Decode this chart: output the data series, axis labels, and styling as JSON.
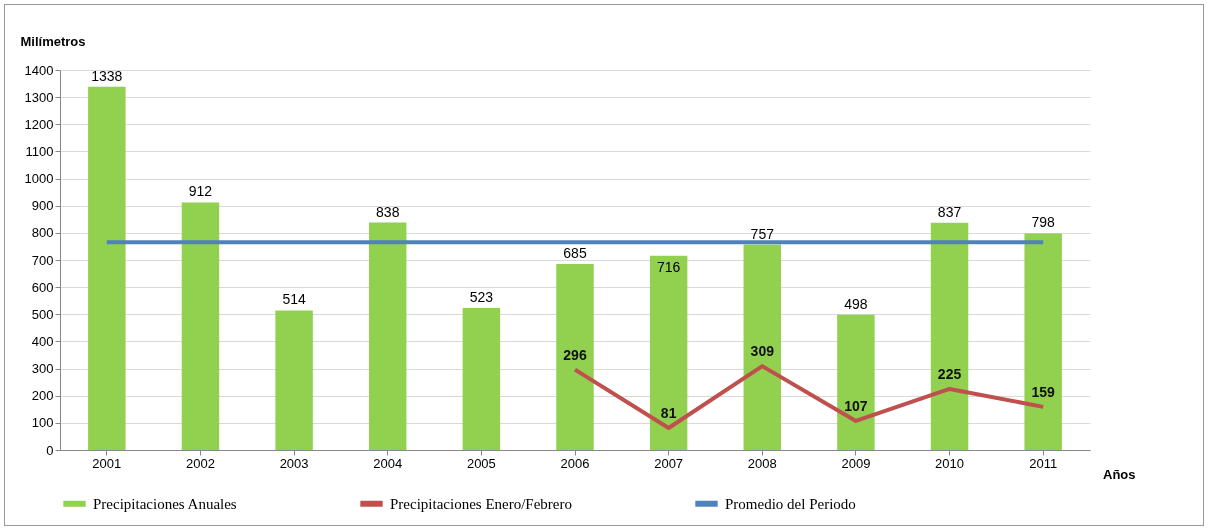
{
  "chart_data": {
    "type": "bar",
    "ylabel": "Milímetros",
    "xlabel": "Años",
    "categories": [
      "2001",
      "2002",
      "2003",
      "2004",
      "2005",
      "2006",
      "2007",
      "2008",
      "2009",
      "2010",
      "2011"
    ],
    "series": [
      {
        "name": "Precipitaciones Anuales",
        "color": "#92d050",
        "values": [
          1338,
          912,
          514,
          838,
          523,
          685,
          716,
          757,
          498,
          837,
          798
        ],
        "value_labels": [
          "1338",
          "912",
          "514",
          "838",
          "523",
          "685",
          "716",
          "757",
          "498",
          "837",
          "798"
        ]
      },
      {
        "name": "Precipitaciones Enero/Febrero",
        "type": "line",
        "color": "#c0504d",
        "values": [
          null,
          null,
          null,
          null,
          null,
          296,
          81,
          309,
          107,
          225,
          159
        ],
        "value_labels": [
          null,
          null,
          null,
          null,
          null,
          "296",
          "81",
          "309",
          "107",
          "225",
          "159"
        ]
      },
      {
        "name": "Promedio del Periodo",
        "type": "line",
        "color": "#4f81bd",
        "values": [
          765,
          765,
          765,
          765,
          765,
          765,
          765,
          765,
          765,
          765,
          765
        ]
      }
    ],
    "ylim": [
      0,
      1400
    ],
    "yticks": [
      0,
      100,
      200,
      300,
      400,
      500,
      600,
      700,
      800,
      900,
      1000,
      1100,
      1200,
      1300,
      1400
    ],
    "grid": "y",
    "legend": "bottom",
    "marker": "none",
    "line_style": "solid"
  }
}
